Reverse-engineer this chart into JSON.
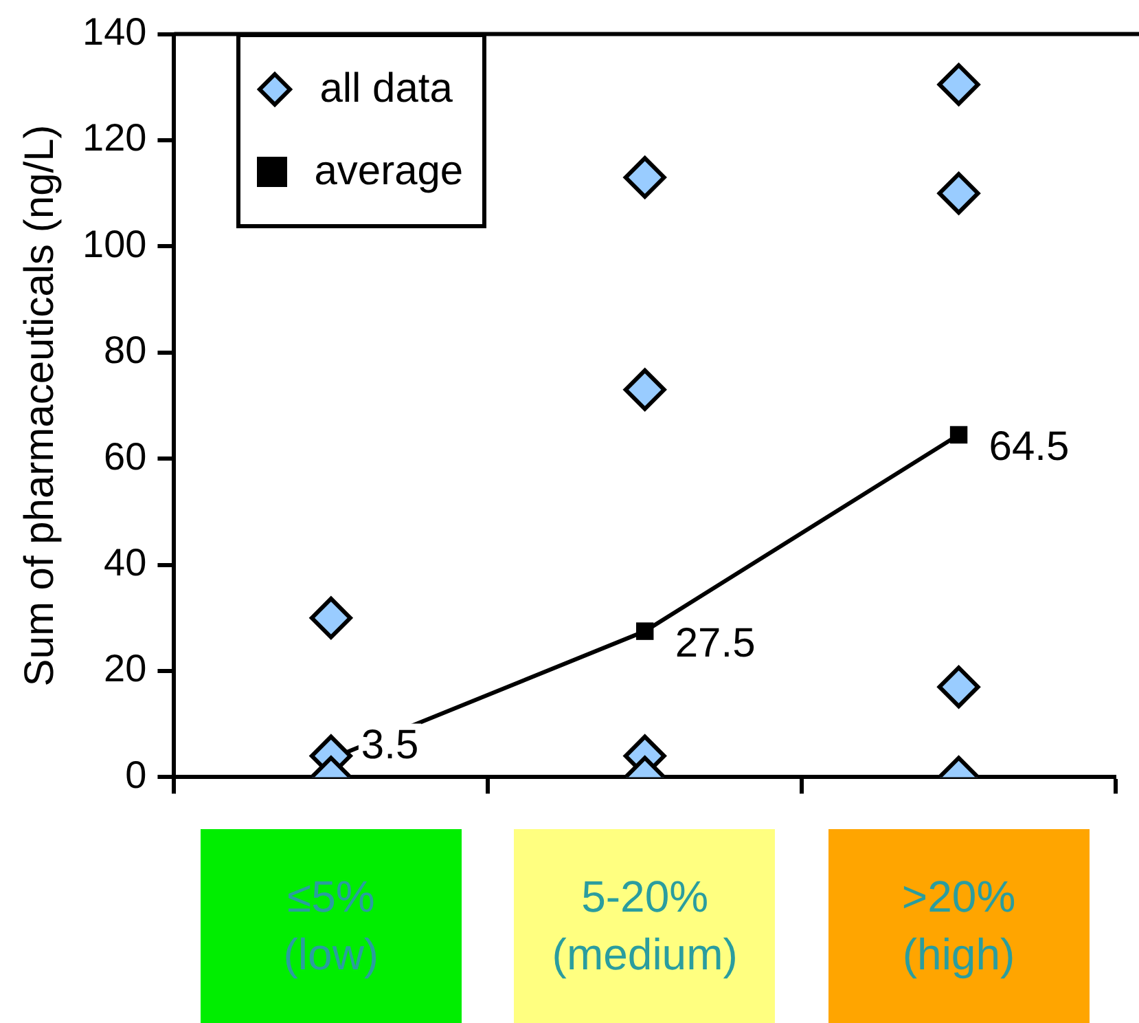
{
  "chart_data": {
    "type": "scatter",
    "ylabel": "Sum of pharmaceuticals (ng/L)",
    "categories": [
      "≤5% (low)",
      "5-20% (medium)",
      ">20% (high)"
    ],
    "ylim": [
      0,
      140
    ],
    "yticks": [
      0,
      20,
      40,
      60,
      80,
      100,
      120,
      140
    ],
    "grid": false,
    "legend": "top left",
    "series": [
      {
        "name": "all data",
        "marker": "diamond",
        "color": "#99ccff",
        "x": [
          "≤5% (low)",
          "≤5% (low)",
          "≤5% (low)",
          "5-20% (medium)",
          "5-20% (medium)",
          "5-20% (medium)",
          "5-20% (medium)",
          ">20% (high)",
          ">20% (high)",
          ">20% (high)",
          ">20% (high)"
        ],
        "values": [
          30,
          4,
          0,
          113,
          73,
          4,
          0,
          130.5,
          110,
          17,
          0
        ]
      },
      {
        "name": "average",
        "type": "line",
        "marker": "square",
        "line_style": "solid",
        "color": "#000000",
        "values": [
          3.5,
          27.5,
          64.5
        ],
        "value_labels": [
          "3.5",
          "27.5",
          "64.5"
        ]
      }
    ]
  }
}
